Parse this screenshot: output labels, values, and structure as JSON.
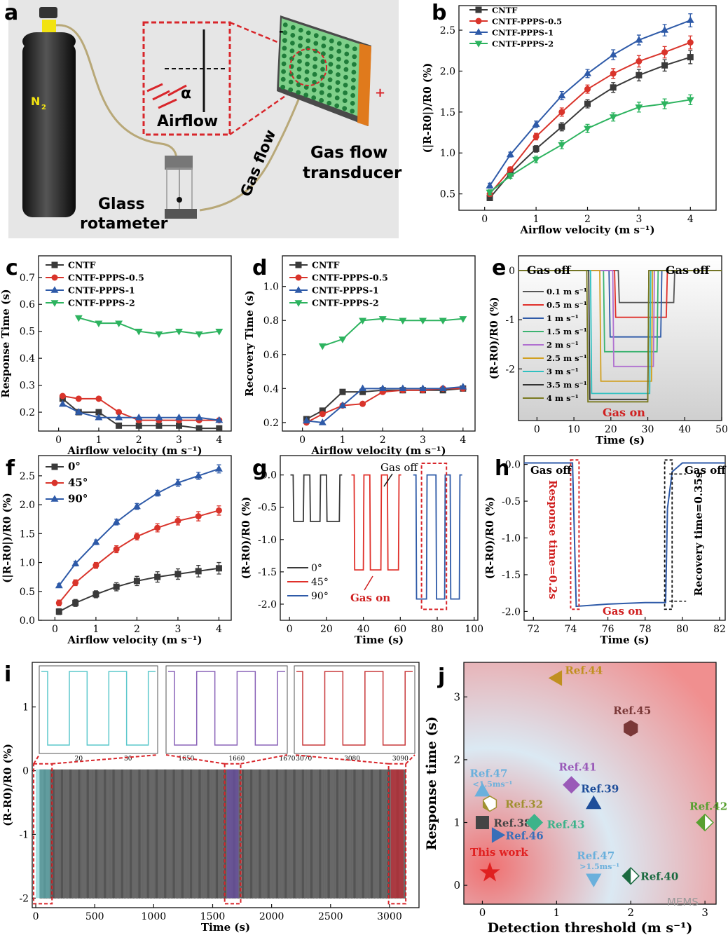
{
  "panel_a": {
    "letter": "a",
    "n2_label": "N",
    "n2_sub": "2",
    "alpha": "α",
    "airflow": "Airflow",
    "gas_flow": "Gas flow",
    "transducer_1": "Gas flow",
    "transducer_2": "transducer",
    "rotameter_1": "Glass",
    "rotameter_2": "rotameter",
    "minus": "-",
    "plus": "+"
  },
  "chart_data": [
    {
      "id": "b",
      "type": "line",
      "letter": "b",
      "xlabel": "Airflow velocity (m s⁻¹)",
      "ylabel": "(|R-R0|)/R0 (%)",
      "xlim": [
        -0.5,
        4.5
      ],
      "ylim": [
        0.3,
        2.8
      ],
      "xticks": [
        0,
        1,
        2,
        3,
        4
      ],
      "xtick_labels": [
        "0",
        "1",
        "2",
        "3",
        "4"
      ],
      "yticks": [
        0.5,
        1.0,
        1.5,
        2.0,
        2.5
      ],
      "ytick_labels": [
        "0.5",
        "1.0",
        "1.5",
        "2.0",
        "2.5"
      ],
      "x": [
        0.1,
        0.5,
        1,
        1.5,
        2,
        2.5,
        3,
        3.5,
        4
      ],
      "series": [
        {
          "name": "CNTF",
          "color": "#3a3a3a",
          "marker": "square",
          "values": [
            0.45,
            0.75,
            1.05,
            1.32,
            1.6,
            1.8,
            1.95,
            2.07,
            2.17
          ],
          "err": [
            0.03,
            0.03,
            0.04,
            0.05,
            0.05,
            0.06,
            0.07,
            0.07,
            0.08
          ]
        },
        {
          "name": "CNTF-PPPS-0.5",
          "color": "#d9342b",
          "marker": "circle",
          "values": [
            0.5,
            0.8,
            1.2,
            1.5,
            1.78,
            1.97,
            2.12,
            2.23,
            2.35
          ],
          "err": [
            0.03,
            0.03,
            0.04,
            0.05,
            0.05,
            0.06,
            0.07,
            0.07,
            0.08
          ]
        },
        {
          "name": "CNTF-PPPS-1",
          "color": "#2e5aa8",
          "marker": "triangle-up",
          "values": [
            0.6,
            0.98,
            1.35,
            1.7,
            1.97,
            2.2,
            2.38,
            2.5,
            2.62
          ],
          "err": [
            0.03,
            0.03,
            0.04,
            0.05,
            0.05,
            0.06,
            0.06,
            0.07,
            0.08
          ]
        },
        {
          "name": "CNTF-PPPS-2",
          "color": "#2db35f",
          "marker": "triangle-down",
          "values": [
            0.52,
            0.72,
            0.92,
            1.1,
            1.3,
            1.44,
            1.56,
            1.6,
            1.65
          ],
          "err": [
            0.03,
            0.03,
            0.04,
            0.05,
            0.05,
            0.05,
            0.06,
            0.06,
            0.06
          ]
        }
      ]
    },
    {
      "id": "c",
      "type": "line",
      "letter": "c",
      "xlabel": "Airflow velocity (m s⁻¹)",
      "ylabel": "Response Time (s)",
      "xlim": [
        -0.5,
        4.3
      ],
      "ylim": [
        0.13,
        0.78
      ],
      "xticks": [
        0,
        1,
        2,
        3,
        4
      ],
      "xtick_labels": [
        "0",
        "1",
        "2",
        "3",
        "4"
      ],
      "yticks": [
        0.2,
        0.3,
        0.4,
        0.5,
        0.6,
        0.7
      ],
      "ytick_labels": [
        "0.2",
        "0.3",
        "0.4",
        "0.5",
        "0.6",
        "0.7"
      ],
      "x": [
        0.1,
        0.5,
        1,
        1.5,
        2,
        2.5,
        3,
        3.5,
        4
      ],
      "series": [
        {
          "name": "CNTF",
          "color": "#3a3a3a",
          "marker": "square",
          "values": [
            0.25,
            0.2,
            0.2,
            0.15,
            0.15,
            0.15,
            0.15,
            0.14,
            0.14
          ]
        },
        {
          "name": "CNTF-PPPS-0.5",
          "color": "#d9342b",
          "marker": "circle",
          "values": [
            0.26,
            0.25,
            0.25,
            0.2,
            0.17,
            0.17,
            0.17,
            0.17,
            0.17
          ]
        },
        {
          "name": "CNTF-PPPS-1",
          "color": "#2e5aa8",
          "marker": "triangle-up",
          "values": [
            0.23,
            0.2,
            0.18,
            0.18,
            0.18,
            0.18,
            0.18,
            0.18,
            0.17
          ]
        },
        {
          "name": "CNTF-PPPS-2",
          "color": "#2db35f",
          "marker": "triangle-down",
          "values": [
            null,
            0.55,
            0.53,
            0.53,
            0.5,
            0.49,
            0.5,
            0.49,
            0.5
          ]
        }
      ]
    },
    {
      "id": "d",
      "type": "line",
      "letter": "d",
      "xlabel": "Airflow velocity (m s⁻¹)",
      "ylabel": "Recovery Time (s)",
      "xlim": [
        -0.5,
        4.3
      ],
      "ylim": [
        0.15,
        1.18
      ],
      "xticks": [
        0,
        1,
        2,
        3,
        4
      ],
      "xtick_labels": [
        "0",
        "1",
        "2",
        "3",
        "4"
      ],
      "yticks": [
        0.2,
        0.4,
        0.6,
        0.8,
        1.0
      ],
      "ytick_labels": [
        "0.2",
        "0.4",
        "0.6",
        "0.8",
        "1.0"
      ],
      "x": [
        0.1,
        0.5,
        1,
        1.5,
        2,
        2.5,
        3,
        3.5,
        4
      ],
      "series": [
        {
          "name": "CNTF",
          "color": "#3a3a3a",
          "marker": "square",
          "values": [
            0.22,
            0.27,
            0.38,
            0.38,
            0.39,
            0.39,
            0.39,
            0.39,
            0.4
          ]
        },
        {
          "name": "CNTF-PPPS-0.5",
          "color": "#d9342b",
          "marker": "circle",
          "values": [
            0.2,
            0.25,
            0.3,
            0.31,
            0.38,
            0.39,
            0.39,
            0.4,
            0.4
          ]
        },
        {
          "name": "CNTF-PPPS-1",
          "color": "#2e5aa8",
          "marker": "triangle-up",
          "values": [
            0.21,
            0.2,
            0.3,
            0.4,
            0.4,
            0.4,
            0.4,
            0.4,
            0.41
          ]
        },
        {
          "name": "CNTF-PPPS-2",
          "color": "#2db35f",
          "marker": "triangle-down",
          "values": [
            null,
            0.65,
            0.69,
            0.8,
            0.81,
            0.8,
            0.8,
            0.8,
            0.81
          ]
        }
      ]
    },
    {
      "id": "e",
      "type": "line",
      "letter": "e",
      "xlabel": "Time (s)",
      "ylabel": "(R-R0)/R0 (%)",
      "xlim": [
        -5,
        50
      ],
      "ylim": [
        -3.05,
        0.3
      ],
      "xticks": [
        0,
        10,
        20,
        30,
        40,
        50
      ],
      "xtick_labels": [
        "0",
        "10",
        "20",
        "30",
        "40",
        "50"
      ],
      "yticks": [
        0,
        -1,
        -2
      ],
      "ytick_labels": [
        "0",
        "-1",
        "-2"
      ],
      "annotations": [
        "Gas off",
        "Gas off",
        "Gas on"
      ],
      "series": [
        {
          "name": "0.1 m s⁻¹",
          "color": "#555555",
          "on": 22,
          "off": 37,
          "level": -0.65
        },
        {
          "name": "0.5 m s⁻¹",
          "color": "#e0302a",
          "on": 21,
          "off": 35,
          "level": -0.95
        },
        {
          "name": "1 m s⁻¹",
          "color": "#2e5aa8",
          "on": 19.5,
          "off": 33.5,
          "level": -1.35
        },
        {
          "name": "1.5 m s⁻¹",
          "color": "#3cb371",
          "on": 18,
          "off": 32.5,
          "level": -1.65
        },
        {
          "name": "2 m s⁻¹",
          "color": "#b070d0",
          "on": 20.5,
          "off": 31.5,
          "level": -1.95
        },
        {
          "name": "2.5 m s⁻¹",
          "color": "#d1a020",
          "on": 17,
          "off": 31,
          "level": -2.25
        },
        {
          "name": "3 m s⁻¹",
          "color": "#30c0c0",
          "on": 14.5,
          "off": 30.5,
          "level": -2.5
        },
        {
          "name": "3.5 m s⁻¹",
          "color": "#333333",
          "on": 14,
          "off": 30,
          "level": -2.62
        },
        {
          "name": "4 m s⁻¹",
          "color": "#7a7a20",
          "on": 13.5,
          "off": 30,
          "level": -2.67
        }
      ]
    },
    {
      "id": "f",
      "type": "line",
      "letter": "f",
      "xlabel": "Airflow velocity (m s⁻¹)",
      "ylabel": "(|R-R0|)/R0 (%)",
      "xlim": [
        -0.4,
        4.3
      ],
      "ylim": [
        0,
        2.85
      ],
      "xticks": [
        0,
        1,
        2,
        3,
        4
      ],
      "xtick_labels": [
        "0",
        "1",
        "2",
        "3",
        "4"
      ],
      "yticks": [
        0.0,
        0.5,
        1.0,
        1.5,
        2.0,
        2.5
      ],
      "ytick_labels": [
        "0.0",
        "0.5",
        "1.0",
        "1.5",
        "2.0",
        "2.5"
      ],
      "x": [
        0.1,
        0.5,
        1,
        1.5,
        2,
        2.5,
        3,
        3.5,
        4
      ],
      "series": [
        {
          "name": "0°",
          "color": "#3a3a3a",
          "marker": "square",
          "values": [
            0.15,
            0.3,
            0.45,
            0.58,
            0.68,
            0.75,
            0.8,
            0.85,
            0.9
          ],
          "err": [
            0.05,
            0.06,
            0.06,
            0.07,
            0.08,
            0.09,
            0.09,
            0.1,
            0.1
          ]
        },
        {
          "name": "45°",
          "color": "#d9342b",
          "marker": "circle",
          "values": [
            0.3,
            0.65,
            0.95,
            1.23,
            1.45,
            1.6,
            1.72,
            1.8,
            1.9
          ],
          "err": [
            0.05,
            0.05,
            0.05,
            0.06,
            0.06,
            0.07,
            0.07,
            0.08,
            0.08
          ]
        },
        {
          "name": "90°",
          "color": "#2e5aa8",
          "marker": "triangle-up",
          "values": [
            0.6,
            0.98,
            1.35,
            1.7,
            1.97,
            2.2,
            2.38,
            2.5,
            2.62
          ],
          "err": [
            0.03,
            0.04,
            0.04,
            0.05,
            0.05,
            0.05,
            0.06,
            0.06,
            0.07
          ]
        }
      ]
    },
    {
      "id": "g",
      "type": "line",
      "letter": "g",
      "xlabel": "Time (s)",
      "ylabel": "(R-R0)/R0 (%)",
      "xlim": [
        -5,
        102
      ],
      "ylim": [
        -2.25,
        0.3
      ],
      "xticks": [
        0,
        20,
        40,
        60,
        80,
        100
      ],
      "xtick_labels": [
        "0",
        "20",
        "40",
        "60",
        "80",
        "100"
      ],
      "yticks": [
        0.0,
        -0.5,
        -1.0,
        -1.5,
        -2.0
      ],
      "ytick_labels": [
        "0.0",
        "-0.5",
        "-1.0",
        "-1.5",
        "-2.0"
      ],
      "annotations": [
        "Gas off",
        "Gas on"
      ],
      "series": [
        {
          "name": "0°",
          "color": "#3a3a3a",
          "level": -0.72,
          "pulses": [
            [
              2,
              7.5
            ],
            [
              11,
              16.5
            ],
            [
              20,
              27
            ]
          ]
        },
        {
          "name": "45°",
          "color": "#e0302a",
          "level": -1.47,
          "pulses": [
            [
              35,
              40
            ],
            [
              43.5,
              49.5
            ],
            [
              53,
              59
            ]
          ]
        },
        {
          "name": "90°",
          "color": "#2e5aa8",
          "level": -1.92,
          "pulses": [
            [
              68.5,
              74.2
            ],
            [
              79.3,
              84
            ],
            [
              87,
              92
            ]
          ]
        }
      ]
    },
    {
      "id": "h",
      "type": "line",
      "letter": "h",
      "xlabel": "Time (s)",
      "ylabel": "(R-R0)/R0 (%)",
      "xlim": [
        71.5,
        82.3
      ],
      "ylim": [
        -2.12,
        0.12
      ],
      "xticks": [
        72,
        74,
        76,
        78,
        80,
        82
      ],
      "xtick_labels": [
        "72",
        "74",
        "76",
        "78",
        "80",
        "82"
      ],
      "yticks": [
        0.0,
        -0.5,
        -1.0,
        -1.5,
        -2.0
      ],
      "ytick_labels": [
        "0.0",
        "-0.5",
        "-1.0",
        "-1.5",
        "-2.0"
      ],
      "annotations": [
        "Gas off",
        "Gas off",
        "Gas on",
        "Response time=0.2s",
        "Recovery time=0.35s"
      ],
      "series": [
        {
          "name": "90°",
          "color": "#2e5aa8",
          "points": [
            [
              71.5,
              0.02
            ],
            [
              74.1,
              0.02
            ],
            [
              74.3,
              -1.93
            ],
            [
              76,
              -1.9
            ],
            [
              78,
              -1.88
            ],
            [
              79.1,
              -1.88
            ],
            [
              79.2,
              -0.6
            ],
            [
              79.45,
              -0.1
            ],
            [
              80,
              0.02
            ],
            [
              82.3,
              0.02
            ]
          ]
        }
      ]
    },
    {
      "id": "i",
      "type": "line",
      "letter": "i",
      "xlabel": "Time (s)",
      "ylabel": "(R-R0)/R0 (%)",
      "xlim": [
        -30,
        3250
      ],
      "ylim": [
        -2.15,
        1.7
      ],
      "xticks": [
        0,
        500,
        1000,
        1500,
        2000,
        2500,
        3000
      ],
      "xtick_labels": [
        "0",
        "500",
        "1000",
        "1500",
        "2000",
        "2500",
        "3000"
      ],
      "yticks": [
        1,
        0,
        -1,
        -2
      ],
      "ytick_labels": [
        "1",
        "0",
        "-1",
        "-2"
      ],
      "insets": [
        {
          "xticks": [
            20,
            30
          ],
          "xtick_labels": [
            "20",
            "30"
          ],
          "range": [
            12,
            36
          ],
          "color": "#5cc8cc"
        },
        {
          "xticks": [
            1650,
            1660,
            1670
          ],
          "xtick_labels": [
            "1650",
            "1660",
            "1670"
          ],
          "range": [
            1646,
            1670
          ],
          "color": "#8a63b8"
        },
        {
          "xticks": [
            3070,
            3080,
            3090
          ],
          "xtick_labels": [
            "3070",
            "3080",
            "3090"
          ],
          "range": [
            3068,
            3093
          ],
          "color": "#c8383a"
        }
      ]
    },
    {
      "id": "j",
      "type": "scatter",
      "letter": "j",
      "xlabel": "Detection threshold (m s⁻¹)",
      "ylabel": "Response time (s)",
      "xlim": [
        -0.25,
        3.15
      ],
      "ylim": [
        -0.3,
        3.55
      ],
      "xticks": [
        0,
        1,
        2,
        3
      ],
      "xtick_labels": [
        "0",
        "1",
        "2",
        "3"
      ],
      "yticks": [
        0,
        1,
        2,
        3
      ],
      "ytick_labels": [
        "0",
        "1",
        "2",
        "3"
      ],
      "points": [
        {
          "label": "Ref.44",
          "x": 1.0,
          "y": 3.3,
          "color": "#c09020",
          "marker": "triangle-left"
        },
        {
          "label": "Ref.45",
          "x": 2.0,
          "y": 2.5,
          "color": "#7a3838",
          "marker": "hexagon"
        },
        {
          "label": "Ref.47",
          "sublabel": "<1.5ms⁻¹",
          "x": 0.0,
          "y": 1.5,
          "color": "#6ab0dc",
          "marker": "triangle-up"
        },
        {
          "label": "Ref.41",
          "x": 1.2,
          "y": 1.6,
          "color": "#9a5ab8",
          "marker": "diamond"
        },
        {
          "label": "Ref.39",
          "x": 1.5,
          "y": 1.3,
          "color": "#1f4e9a",
          "marker": "triangle-up"
        },
        {
          "label": "Ref.32",
          "x": 0.1,
          "y": 1.3,
          "color": "#a09030",
          "marker": "hexagon-half"
        },
        {
          "label": "Ref.42",
          "x": 3.0,
          "y": 1.0,
          "color": "#58a030",
          "marker": "diamond-half"
        },
        {
          "label": "Ref.38",
          "x": 0.0,
          "y": 1.0,
          "color": "#444444",
          "marker": "square"
        },
        {
          "label": "Ref.43",
          "x": 0.7,
          "y": 1.0,
          "color": "#3cb38a",
          "marker": "diamond"
        },
        {
          "label": "Ref.46",
          "x": 0.2,
          "y": 0.8,
          "color": "#3a6fb8",
          "marker": "triangle-right"
        },
        {
          "label": "Ref.47",
          "sublabel": ">1.5ms⁻¹",
          "x": 1.5,
          "y": 0.1,
          "color": "#6ab0dc",
          "marker": "triangle-down"
        },
        {
          "label": "Ref.40",
          "x": 2.0,
          "y": 0.15,
          "color": "#1a6a40",
          "marker": "diamond-half"
        },
        {
          "label": "This work",
          "x": 0.1,
          "y": 0.2,
          "color": "#e02020",
          "marker": "star"
        }
      ],
      "watermark": "MEMS"
    }
  ]
}
